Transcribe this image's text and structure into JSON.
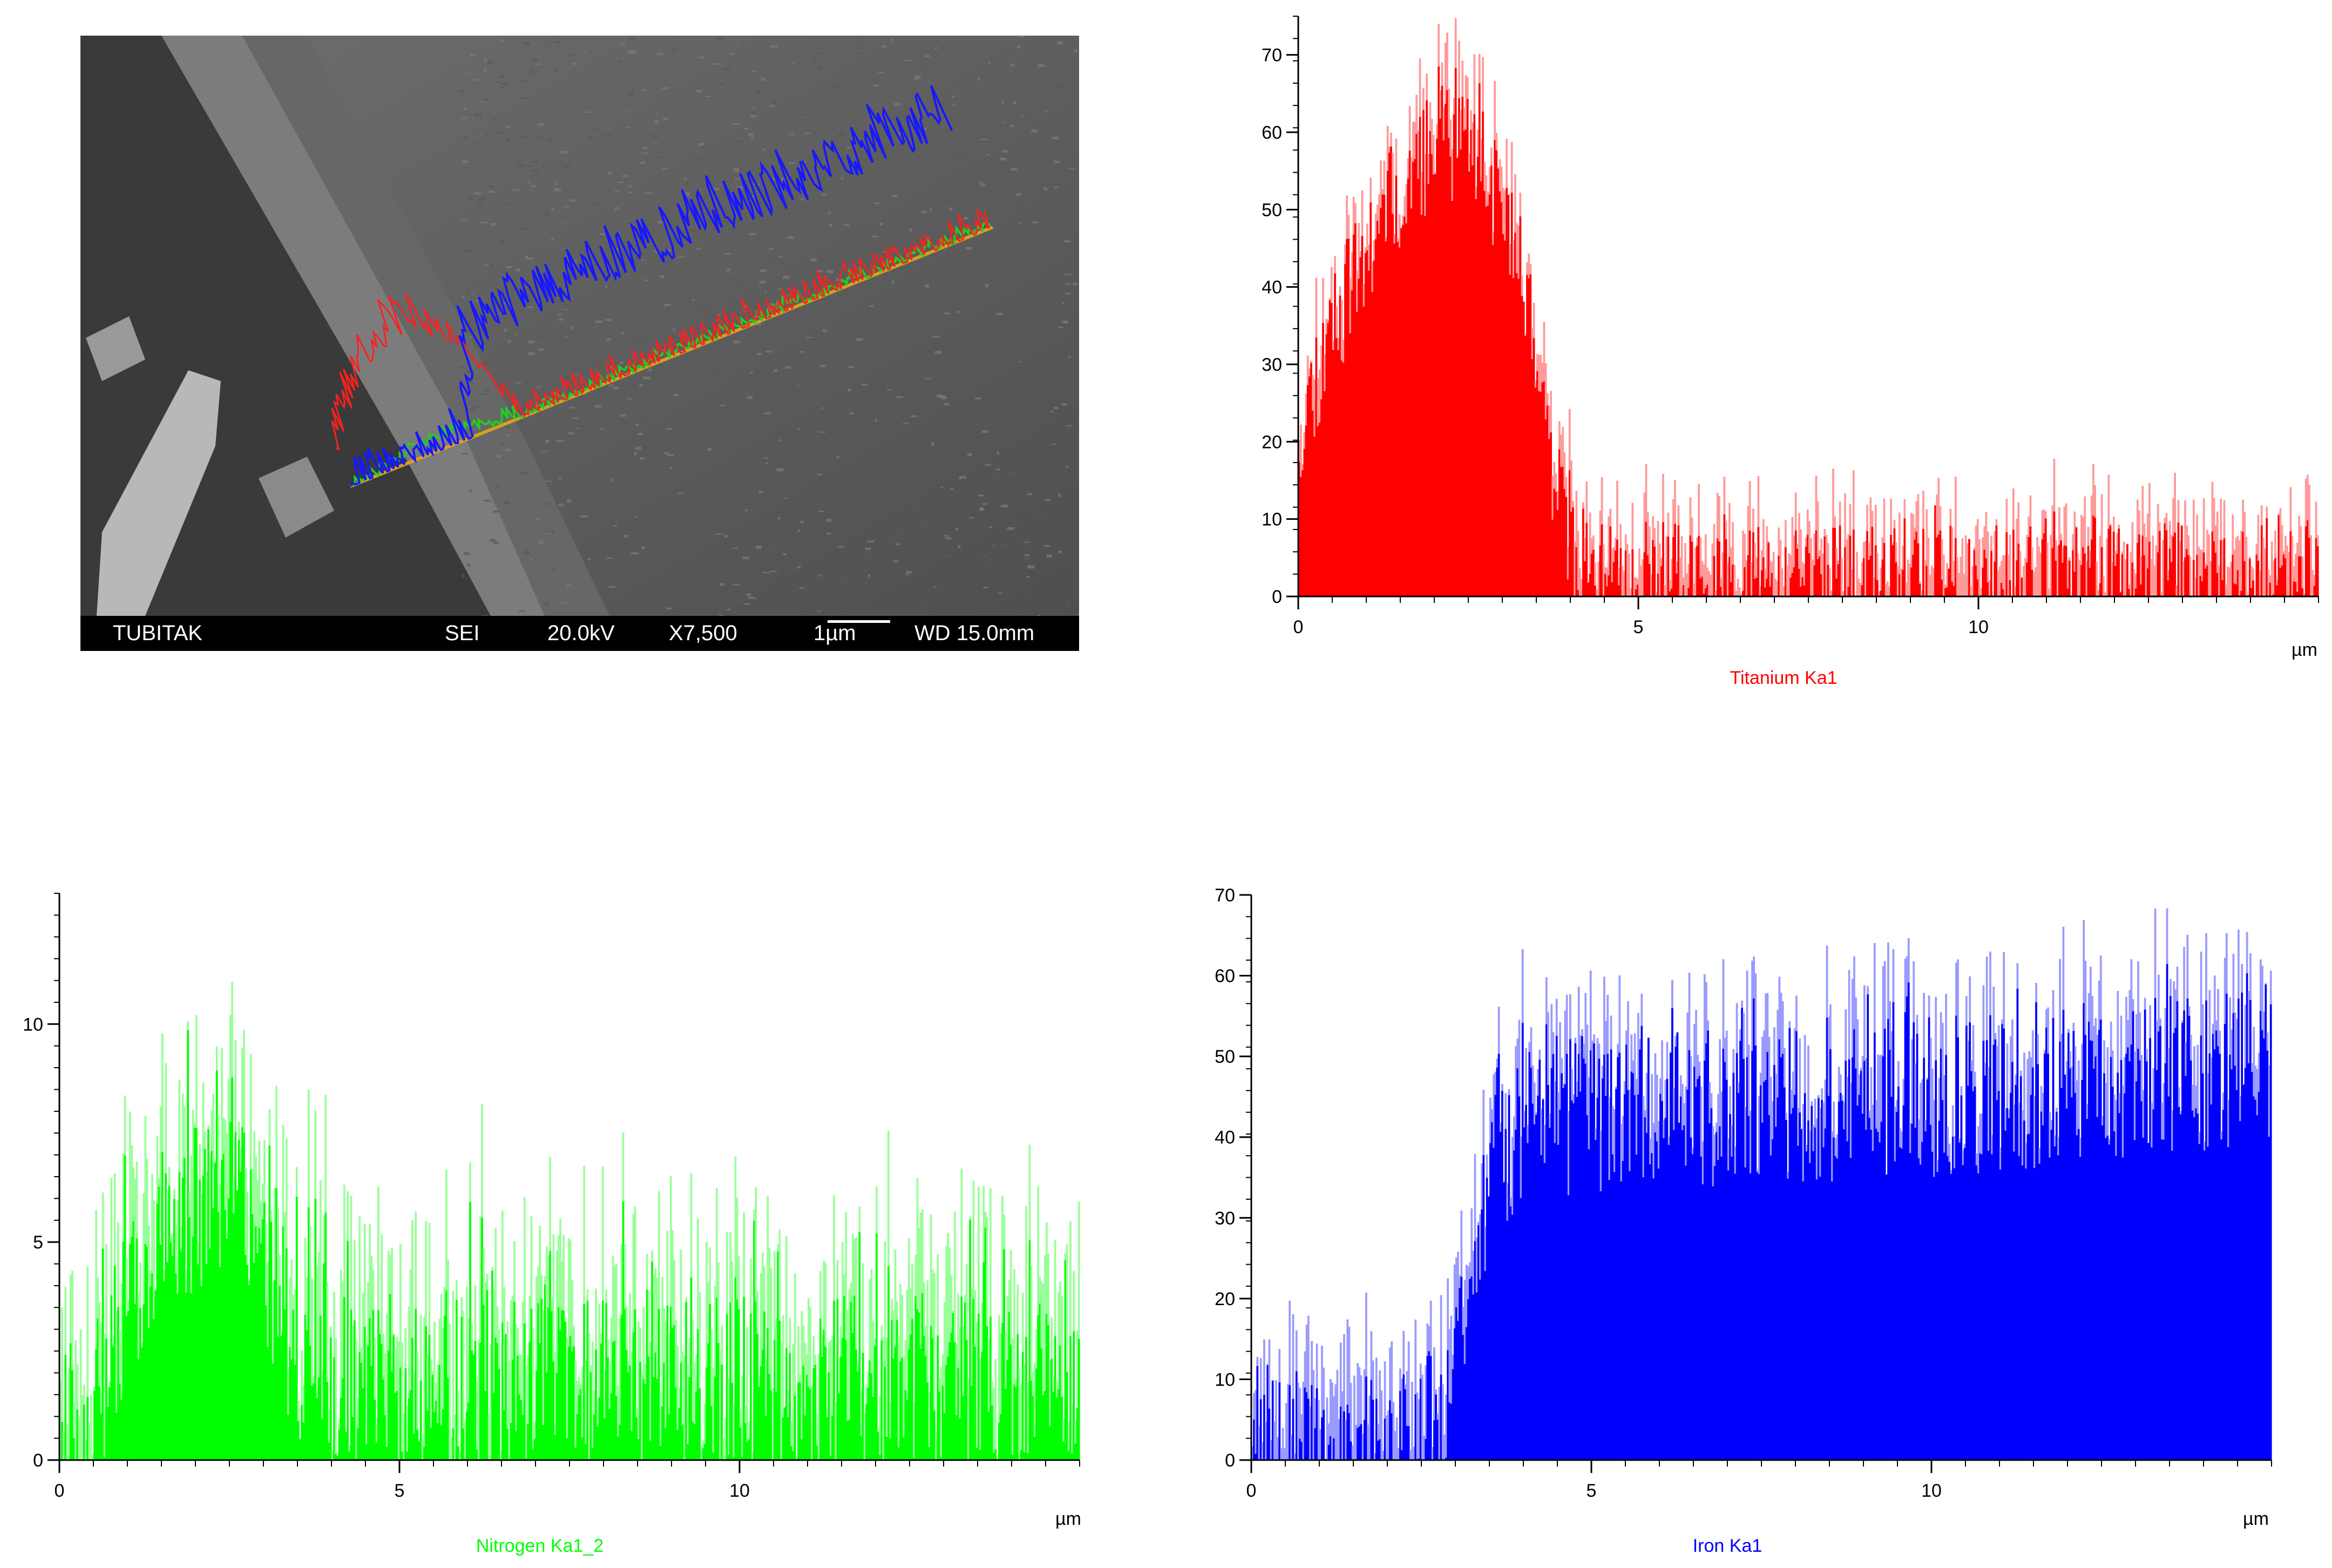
{
  "sem": {
    "label_org": "TUBITAK",
    "label_mode": "SEI",
    "label_kv": "20.0kV",
    "label_mag": "X7,500",
    "label_scale": "1µm",
    "label_wd": "WD 15.0mm"
  },
  "chart_data": [
    {
      "id": "titanium",
      "type": "bar",
      "title": "",
      "series_label": "Titanium Ka1",
      "color": "#ff0000",
      "light_color": "#ff9a9a",
      "xlabel": "µm",
      "ylabel": "",
      "xlim": [
        0,
        15
      ],
      "ylim": [
        0,
        75
      ],
      "xticks": [
        0,
        5,
        10
      ],
      "yticks": [
        0,
        10,
        20,
        30,
        40,
        50,
        60,
        70
      ],
      "ytick_labels": [
        "0",
        "10",
        "20",
        "30",
        "40",
        "50",
        "60",
        "70"
      ],
      "profile": [
        [
          0,
          22
        ],
        [
          0.5,
          36
        ],
        [
          1.0,
          44
        ],
        [
          1.5,
          54
        ],
        [
          2.0,
          59
        ],
        [
          2.5,
          59
        ],
        [
          3.0,
          51
        ],
        [
          3.3,
          42
        ],
        [
          3.6,
          22
        ],
        [
          4.0,
          6
        ],
        [
          4.5,
          2
        ],
        [
          15,
          2
        ]
      ],
      "noise_down": 8,
      "noise_up": 10,
      "seed": 11
    },
    {
      "id": "nitrogen",
      "type": "bar",
      "title": "",
      "series_label": "Nitrogen Ka1_2",
      "color": "#00ff00",
      "light_color": "#99ff99",
      "xlabel": "µm",
      "ylabel": "",
      "xlim": [
        0,
        15
      ],
      "ylim": [
        0,
        13
      ],
      "xticks": [
        0,
        5,
        10
      ],
      "yticks": [
        0,
        5,
        10
      ],
      "ytick_labels": [
        "0",
        "5",
        "10"
      ],
      "profile": [
        [
          0,
          1
        ],
        [
          0.7,
          1
        ],
        [
          0.8,
          3
        ],
        [
          1.5,
          5.5
        ],
        [
          2.4,
          6.5
        ],
        [
          3.0,
          5
        ],
        [
          3.5,
          2
        ],
        [
          15,
          2
        ]
      ],
      "noise_down": 2,
      "noise_up": 4,
      "seed": 23
    },
    {
      "id": "iron",
      "type": "bar",
      "title": "",
      "series_label": "Iron Ka1",
      "color": "#0000ff",
      "light_color": "#9a9aff",
      "xlabel": "µm",
      "ylabel": "",
      "xlim": [
        0,
        15
      ],
      "ylim": [
        0,
        70
      ],
      "xticks": [
        0,
        5,
        10
      ],
      "yticks": [
        0,
        10,
        20,
        30,
        40,
        50,
        60,
        70
      ],
      "ytick_labels": [
        "0",
        "10",
        "20",
        "30",
        "40",
        "50",
        "60",
        "70"
      ],
      "profile": [
        [
          0,
          1
        ],
        [
          2.5,
          2
        ],
        [
          2.9,
          8
        ],
        [
          3.2,
          22
        ],
        [
          3.6,
          38
        ],
        [
          4.0,
          43
        ],
        [
          6,
          44
        ],
        [
          10,
          46
        ],
        [
          13,
          48
        ],
        [
          15,
          50
        ]
      ],
      "noise_down": 10,
      "noise_up": 14,
      "seed": 37
    }
  ]
}
